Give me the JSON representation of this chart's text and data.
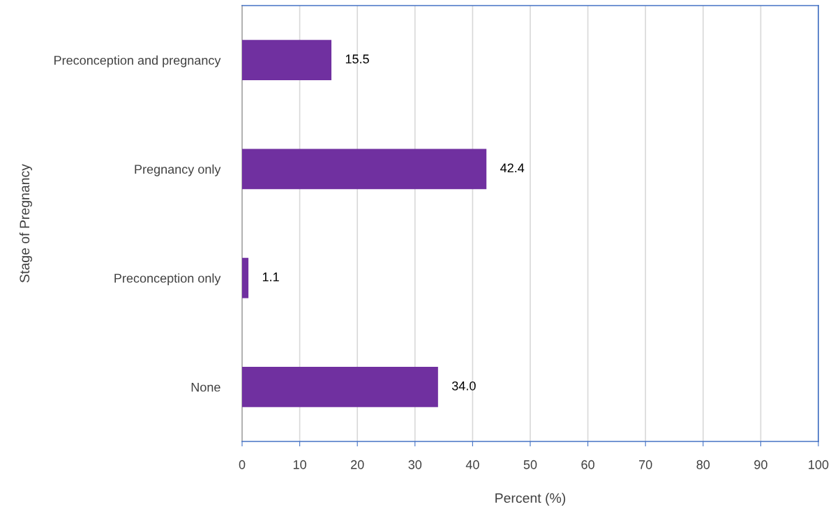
{
  "chart_data": {
    "type": "bar",
    "orientation": "horizontal",
    "xlabel": "Percent (%)",
    "ylabel": "Stage of Pregnancy",
    "categories": [
      "Preconception and pregnancy",
      "Pregnancy only",
      "Preconception only",
      "None"
    ],
    "values": [
      15.5,
      42.4,
      1.1,
      34.0
    ],
    "value_labels": [
      "15.5",
      "42.4",
      "1.1",
      "34.0"
    ],
    "color": "#7030a0",
    "xlim": [
      0,
      100
    ],
    "xticks": [
      0,
      10,
      20,
      30,
      40,
      50,
      60,
      70,
      80,
      90,
      100
    ],
    "grid": "x",
    "legend": false
  }
}
